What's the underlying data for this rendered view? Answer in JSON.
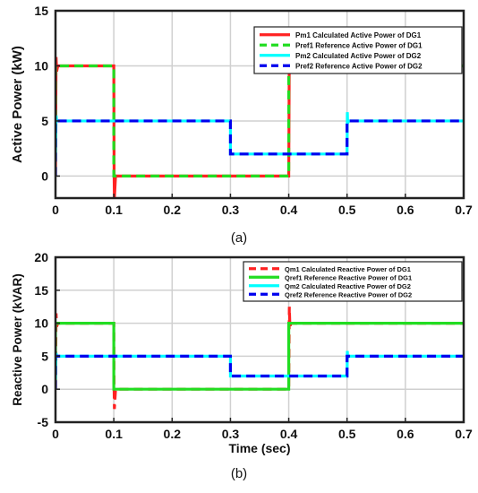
{
  "chart_data": [
    {
      "type": "line",
      "panel_label": "(a)",
      "title": "",
      "xlabel": "",
      "ylabel": "Active Power (kW)",
      "xlim": [
        0,
        0.7
      ],
      "ylim": [
        -2,
        15
      ],
      "xticks": [
        0,
        0.1,
        0.2,
        0.3,
        0.4,
        0.5,
        0.6,
        0.7
      ],
      "xtick_labels": [
        "0",
        "0.1",
        "0.2",
        "0.3",
        "0.4",
        "0.5",
        "0.6",
        "0.7"
      ],
      "yticks": [
        0,
        5,
        10,
        15
      ],
      "ytick_labels": [
        "0",
        "5",
        "10",
        "15"
      ],
      "grid": true,
      "legend_position": "top-right",
      "series": [
        {
          "name": "Pm1 Calculated Active Power of DG1",
          "color": "#ff2222",
          "style": "solid",
          "x": [
            0,
            0.001,
            0.002,
            0.004,
            0.1,
            0.1005,
            0.101,
            0.103,
            0.4,
            0.401,
            0.402,
            0.404,
            0.7
          ],
          "y": [
            0,
            10.8,
            9.5,
            10,
            10,
            0,
            -2,
            0,
            0,
            11.5,
            9.5,
            10,
            10
          ]
        },
        {
          "name": "Pref1 Reference Active Power of DG1",
          "color": "#22dd22",
          "style": "dashed",
          "x": [
            0,
            0,
            0.1,
            0.1,
            0.4,
            0.4,
            0.7
          ],
          "y": [
            0,
            10,
            10,
            0,
            0,
            10,
            10
          ]
        },
        {
          "name": "Pm2 Calculated Active Power of DG2",
          "color": "#00ffff",
          "style": "solid",
          "x": [
            0,
            0.001,
            0.002,
            0.3,
            0.3,
            0.4,
            0.5,
            0.5005,
            0.501,
            0.503,
            0.7
          ],
          "y": [
            1.5,
            5.5,
            5,
            5,
            2,
            2,
            2,
            5.8,
            4.8,
            5,
            5
          ]
        },
        {
          "name": "Pref2 Reference Active Power of DG2",
          "color": "#0000ee",
          "style": "dashed",
          "x": [
            0,
            0,
            0.3,
            0.3,
            0.5,
            0.5,
            0.7
          ],
          "y": [
            0,
            5,
            5,
            2,
            2,
            5,
            5
          ]
        }
      ]
    },
    {
      "type": "line",
      "panel_label": "(b)",
      "title": "",
      "xlabel": "Time (sec)",
      "ylabel": "Reactive Power (kVAR)",
      "xlim": [
        0,
        0.7
      ],
      "ylim": [
        -5,
        20
      ],
      "xticks": [
        0,
        0.1,
        0.2,
        0.3,
        0.4,
        0.5,
        0.6,
        0.7
      ],
      "xtick_labels": [
        "0",
        "0.1",
        "0.2",
        "0.3",
        "0.4",
        "0.5",
        "0.6",
        "0.7"
      ],
      "yticks": [
        -5,
        0,
        5,
        10,
        15,
        20
      ],
      "ytick_labels": [
        "-5",
        "0",
        "5",
        "10",
        "15",
        "20"
      ],
      "grid": true,
      "legend_position": "top-right",
      "series": [
        {
          "name": "Qm1 Calculated Reactive Power of DG1",
          "color": "#ff2222",
          "style": "dashed",
          "x": [
            0,
            0.001,
            0.002,
            0.004,
            0.1,
            0.1005,
            0.101,
            0.103,
            0.4,
            0.401,
            0.402,
            0.404,
            0.7
          ],
          "y": [
            0,
            11.5,
            9.5,
            10,
            10,
            0,
            -3,
            0,
            0,
            12.5,
            9.5,
            10,
            10
          ]
        },
        {
          "name": "Qref1 Reference Reactive Power of DG1",
          "color": "#22dd22",
          "style": "solid",
          "x": [
            0,
            0,
            0.1,
            0.1,
            0.4,
            0.4,
            0.7
          ],
          "y": [
            0,
            10,
            10,
            0,
            0,
            10,
            10
          ]
        },
        {
          "name": "Qm2 Calculated Reactive Power of DG2",
          "color": "#00ffff",
          "style": "solid",
          "x": [
            0,
            0.001,
            0.002,
            0.3,
            0.3,
            0.4,
            0.5,
            0.5005,
            0.501,
            0.503,
            0.7
          ],
          "y": [
            1.5,
            5.5,
            5,
            5,
            2,
            2,
            2,
            5.8,
            4.8,
            5,
            5
          ]
        },
        {
          "name": "Qref2 Reference Reactive Power of DG2",
          "color": "#0000ee",
          "style": "dashed",
          "x": [
            0,
            0,
            0.3,
            0.3,
            0.5,
            0.5,
            0.7
          ],
          "y": [
            0,
            5,
            5,
            2,
            2,
            5,
            5
          ]
        }
      ]
    }
  ]
}
